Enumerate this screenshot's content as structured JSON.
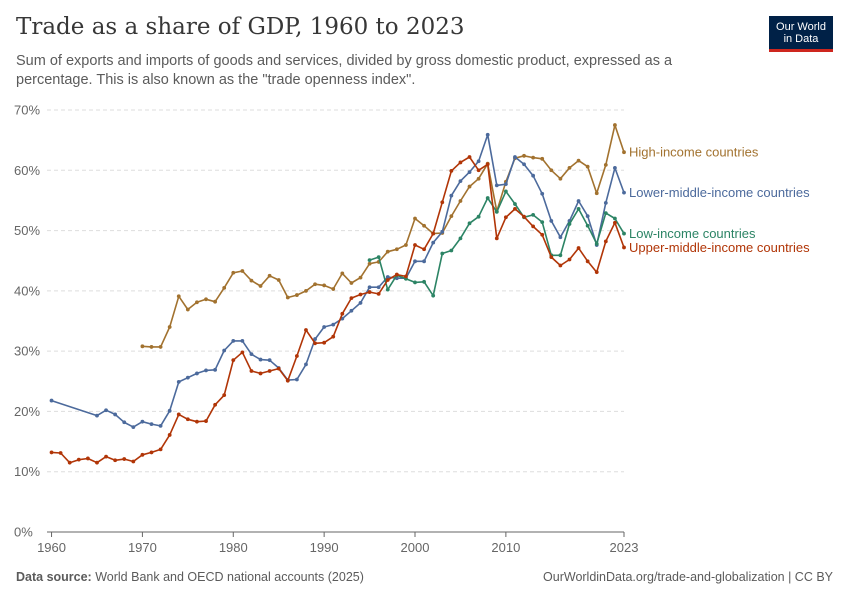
{
  "header": {
    "title": "Trade as a share of GDP, 1960 to 2023",
    "subtitle": "Sum of exports and imports of goods and services, divided by gross domestic product, expressed as a percentage. This is also known as the \"trade openness index\".",
    "logo_line1": "Our World",
    "logo_line2": "in Data"
  },
  "footer": {
    "source_label": "Data source:",
    "source_text": "World Bank and OECD national accounts (2025)",
    "url": "OurWorldinData.org/trade-and-globalization | CC BY"
  },
  "colors": {
    "grid": "#dddddd",
    "axis": "#666666",
    "tick_text": "#666666"
  },
  "chart_data": {
    "type": "line",
    "xlim": [
      1959.5,
      2023
    ],
    "ylim": [
      0,
      70
    ],
    "x_ticks": [
      1960,
      1970,
      1980,
      1990,
      2000,
      2010,
      2023
    ],
    "x_tick_labels": [
      "1960",
      "1970",
      "1980",
      "1990",
      "2000",
      "2010",
      "2023"
    ],
    "y_ticks": [
      0,
      10,
      20,
      30,
      40,
      50,
      60,
      70
    ],
    "y_tick_labels": [
      "0%",
      "10%",
      "20%",
      "30%",
      "40%",
      "50%",
      "60%",
      "70%"
    ],
    "grid": "horizontal dashed",
    "legend": "labels at line ends, right",
    "series": [
      {
        "name": "High-income countries",
        "color": "#a2722f",
        "points": [
          [
            1970,
            30.8
          ],
          [
            1971,
            30.7
          ],
          [
            1972,
            30.7
          ],
          [
            1973,
            34.0
          ],
          [
            1974,
            39.1
          ],
          [
            1975,
            36.9
          ],
          [
            1976,
            38.1
          ],
          [
            1977,
            38.6
          ],
          [
            1978,
            38.2
          ],
          [
            1979,
            40.5
          ],
          [
            1980,
            43.0
          ],
          [
            1981,
            43.3
          ],
          [
            1982,
            41.7
          ],
          [
            1983,
            40.8
          ],
          [
            1984,
            42.5
          ],
          [
            1985,
            41.8
          ],
          [
            1986,
            38.9
          ],
          [
            1987,
            39.3
          ],
          [
            1988,
            40.0
          ],
          [
            1989,
            41.1
          ],
          [
            1990,
            40.9
          ],
          [
            1991,
            40.3
          ],
          [
            1992,
            42.9
          ],
          [
            1993,
            41.3
          ],
          [
            1994,
            42.2
          ],
          [
            1995,
            44.5
          ],
          [
            1996,
            44.8
          ],
          [
            1997,
            46.5
          ],
          [
            1998,
            46.9
          ],
          [
            1999,
            47.6
          ],
          [
            2000,
            52.0
          ],
          [
            2001,
            50.8
          ],
          [
            2002,
            49.5
          ],
          [
            2003,
            49.6
          ],
          [
            2004,
            52.4
          ],
          [
            2005,
            54.9
          ],
          [
            2006,
            57.3
          ],
          [
            2007,
            58.6
          ],
          [
            2008,
            61.1
          ],
          [
            2009,
            53.2
          ],
          [
            2010,
            58.1
          ],
          [
            2011,
            62.0
          ],
          [
            2012,
            62.4
          ],
          [
            2013,
            62.1
          ],
          [
            2014,
            61.9
          ],
          [
            2015,
            60.0
          ],
          [
            2016,
            58.6
          ],
          [
            2017,
            60.4
          ],
          [
            2018,
            61.6
          ],
          [
            2019,
            60.6
          ],
          [
            2020,
            56.2
          ],
          [
            2021,
            60.9
          ],
          [
            2022,
            67.5
          ],
          [
            2023,
            63.0
          ]
        ]
      },
      {
        "name": "Lower-middle-income countries",
        "color": "#4c6a9c",
        "points": [
          [
            1960,
            21.8
          ],
          [
            1965,
            19.3
          ],
          [
            1966,
            20.2
          ],
          [
            1967,
            19.5
          ],
          [
            1968,
            18.2
          ],
          [
            1969,
            17.4
          ],
          [
            1970,
            18.3
          ],
          [
            1971,
            17.9
          ],
          [
            1972,
            17.6
          ],
          [
            1973,
            20.1
          ],
          [
            1974,
            24.9
          ],
          [
            1975,
            25.6
          ],
          [
            1976,
            26.3
          ],
          [
            1977,
            26.8
          ],
          [
            1978,
            26.9
          ],
          [
            1979,
            30.1
          ],
          [
            1980,
            31.7
          ],
          [
            1981,
            31.7
          ],
          [
            1982,
            29.5
          ],
          [
            1983,
            28.6
          ],
          [
            1984,
            28.5
          ],
          [
            1985,
            27.2
          ],
          [
            1986,
            25.2
          ],
          [
            1987,
            25.3
          ],
          [
            1988,
            27.8
          ],
          [
            1989,
            32.0
          ],
          [
            1990,
            34.0
          ],
          [
            1991,
            34.4
          ],
          [
            1992,
            35.4
          ],
          [
            1993,
            36.7
          ],
          [
            1994,
            38.0
          ],
          [
            1995,
            40.6
          ],
          [
            1996,
            40.6
          ],
          [
            1997,
            42.3
          ],
          [
            1998,
            42.1
          ],
          [
            1999,
            42.1
          ],
          [
            2000,
            44.9
          ],
          [
            2001,
            44.9
          ],
          [
            2002,
            48.0
          ],
          [
            2003,
            49.8
          ],
          [
            2004,
            55.8
          ],
          [
            2005,
            58.2
          ],
          [
            2006,
            59.7
          ],
          [
            2007,
            61.5
          ],
          [
            2008,
            65.9
          ],
          [
            2009,
            57.5
          ],
          [
            2010,
            57.7
          ],
          [
            2011,
            62.2
          ],
          [
            2012,
            61.0
          ],
          [
            2013,
            59.1
          ],
          [
            2014,
            56.1
          ],
          [
            2015,
            51.6
          ],
          [
            2016,
            48.9
          ],
          [
            2017,
            51.6
          ],
          [
            2018,
            54.9
          ],
          [
            2019,
            52.4
          ],
          [
            2020,
            47.6
          ],
          [
            2021,
            54.6
          ],
          [
            2022,
            60.4
          ],
          [
            2023,
            56.3
          ]
        ]
      },
      {
        "name": "Low-income countries",
        "color": "#2c8465",
        "points": [
          [
            1995,
            45.1
          ],
          [
            1996,
            45.6
          ],
          [
            1997,
            40.2
          ],
          [
            1998,
            42.6
          ],
          [
            1999,
            42.0
          ],
          [
            2000,
            41.4
          ],
          [
            2001,
            41.5
          ],
          [
            2002,
            39.2
          ],
          [
            2003,
            46.2
          ],
          [
            2004,
            46.7
          ],
          [
            2005,
            48.7
          ],
          [
            2006,
            51.2
          ],
          [
            2007,
            52.3
          ],
          [
            2008,
            55.4
          ],
          [
            2009,
            53.1
          ],
          [
            2010,
            56.5
          ],
          [
            2011,
            54.4
          ],
          [
            2012,
            52.2
          ],
          [
            2013,
            52.6
          ],
          [
            2014,
            51.4
          ],
          [
            2015,
            45.9
          ],
          [
            2016,
            45.9
          ],
          [
            2017,
            51.1
          ],
          [
            2018,
            53.6
          ],
          [
            2019,
            50.8
          ],
          [
            2020,
            47.8
          ],
          [
            2021,
            52.9
          ],
          [
            2022,
            52.0
          ],
          [
            2023,
            49.5
          ]
        ]
      },
      {
        "name": "Upper-middle-income countries",
        "color": "#b13507",
        "points": [
          [
            1960,
            13.2
          ],
          [
            1961,
            13.1
          ],
          [
            1962,
            11.5
          ],
          [
            1963,
            12.0
          ],
          [
            1964,
            12.2
          ],
          [
            1965,
            11.5
          ],
          [
            1966,
            12.5
          ],
          [
            1967,
            11.9
          ],
          [
            1968,
            12.1
          ],
          [
            1969,
            11.7
          ],
          [
            1970,
            12.8
          ],
          [
            1971,
            13.2
          ],
          [
            1972,
            13.7
          ],
          [
            1973,
            16.1
          ],
          [
            1974,
            19.5
          ],
          [
            1975,
            18.7
          ],
          [
            1976,
            18.3
          ],
          [
            1977,
            18.4
          ],
          [
            1978,
            21.1
          ],
          [
            1979,
            22.7
          ],
          [
            1980,
            28.5
          ],
          [
            1981,
            29.8
          ],
          [
            1982,
            26.7
          ],
          [
            1983,
            26.3
          ],
          [
            1984,
            26.7
          ],
          [
            1985,
            27.1
          ],
          [
            1986,
            25.1
          ],
          [
            1987,
            29.2
          ],
          [
            1988,
            33.5
          ],
          [
            1989,
            31.3
          ],
          [
            1990,
            31.4
          ],
          [
            1991,
            32.4
          ],
          [
            1992,
            36.2
          ],
          [
            1993,
            38.8
          ],
          [
            1994,
            39.4
          ],
          [
            1995,
            39.8
          ],
          [
            1996,
            39.5
          ],
          [
            1997,
            41.8
          ],
          [
            1998,
            42.7
          ],
          [
            1999,
            42.4
          ],
          [
            2000,
            47.6
          ],
          [
            2001,
            46.9
          ],
          [
            2002,
            49.5
          ],
          [
            2003,
            54.7
          ],
          [
            2004,
            59.9
          ],
          [
            2005,
            61.3
          ],
          [
            2006,
            62.2
          ],
          [
            2007,
            60.0
          ],
          [
            2008,
            61.0
          ],
          [
            2009,
            48.7
          ],
          [
            2010,
            52.2
          ],
          [
            2011,
            53.6
          ],
          [
            2012,
            52.3
          ],
          [
            2013,
            50.7
          ],
          [
            2014,
            49.3
          ],
          [
            2015,
            45.6
          ],
          [
            2016,
            44.2
          ],
          [
            2017,
            45.2
          ],
          [
            2018,
            47.1
          ],
          [
            2019,
            44.9
          ],
          [
            2020,
            43.1
          ],
          [
            2021,
            48.2
          ],
          [
            2022,
            51.3
          ],
          [
            2023,
            47.2
          ]
        ]
      }
    ]
  }
}
